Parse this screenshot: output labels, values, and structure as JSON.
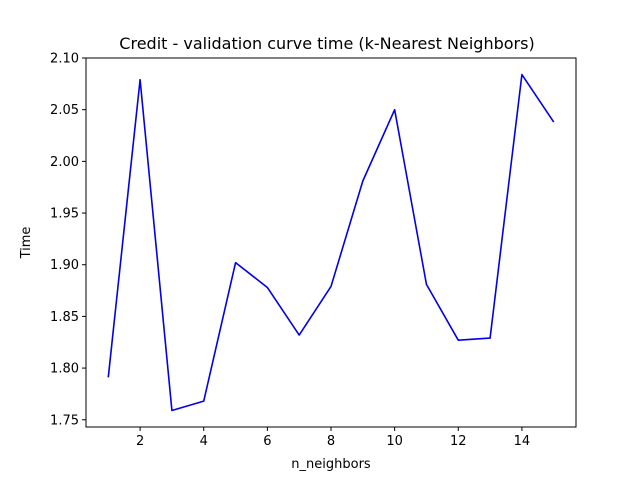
{
  "chart_data": {
    "type": "line",
    "title": "Credit - validation curve time (k-Nearest Neighbors)",
    "xlabel": "n_neighbors",
    "ylabel": "Time",
    "xlim": [
      0.3,
      15.7
    ],
    "ylim": [
      1.743,
      2.1
    ],
    "x_ticks": [
      2,
      4,
      6,
      8,
      10,
      12,
      14
    ],
    "y_ticks": [
      1.75,
      1.8,
      1.85,
      1.9,
      1.95,
      2.0,
      2.05,
      2.1
    ],
    "y_tick_labels": [
      "1.75",
      "1.80",
      "1.85",
      "1.90",
      "1.95",
      "2.00",
      "2.05",
      "2.10"
    ],
    "grid": false,
    "series": [
      {
        "color": "#0000ee",
        "x": [
          1,
          2,
          3,
          4,
          5,
          6,
          7,
          8,
          9,
          10,
          11,
          12,
          13,
          14,
          15
        ],
        "y": [
          1.791,
          2.079,
          1.759,
          1.768,
          1.902,
          1.878,
          1.832,
          1.879,
          1.981,
          2.05,
          1.881,
          1.827,
          1.829,
          2.084,
          2.038
        ]
      }
    ]
  }
}
